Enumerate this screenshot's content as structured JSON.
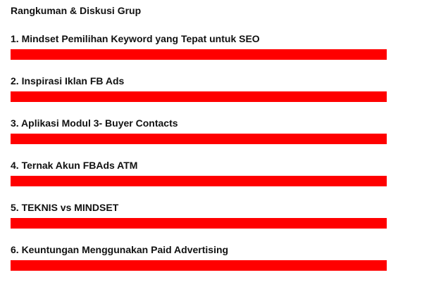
{
  "page": {
    "title": "Rangkuman & Diskusi Grup"
  },
  "colors": {
    "bar": "#ff0000",
    "text": "#111111",
    "background": "#ffffff"
  },
  "items": [
    {
      "label": "1. Mindset Pemilihan Keyword yang Tepat untuk SEO"
    },
    {
      "label": "2. Inspirasi Iklan FB Ads"
    },
    {
      "label": "3. Aplikasi Modul 3- Buyer Contacts"
    },
    {
      "label": "4. Ternak Akun FBAds ATM"
    },
    {
      "label": "5. TEKNIS vs MINDSET"
    },
    {
      "label": "6. Keuntungan Menggunakan Paid Advertising"
    }
  ]
}
